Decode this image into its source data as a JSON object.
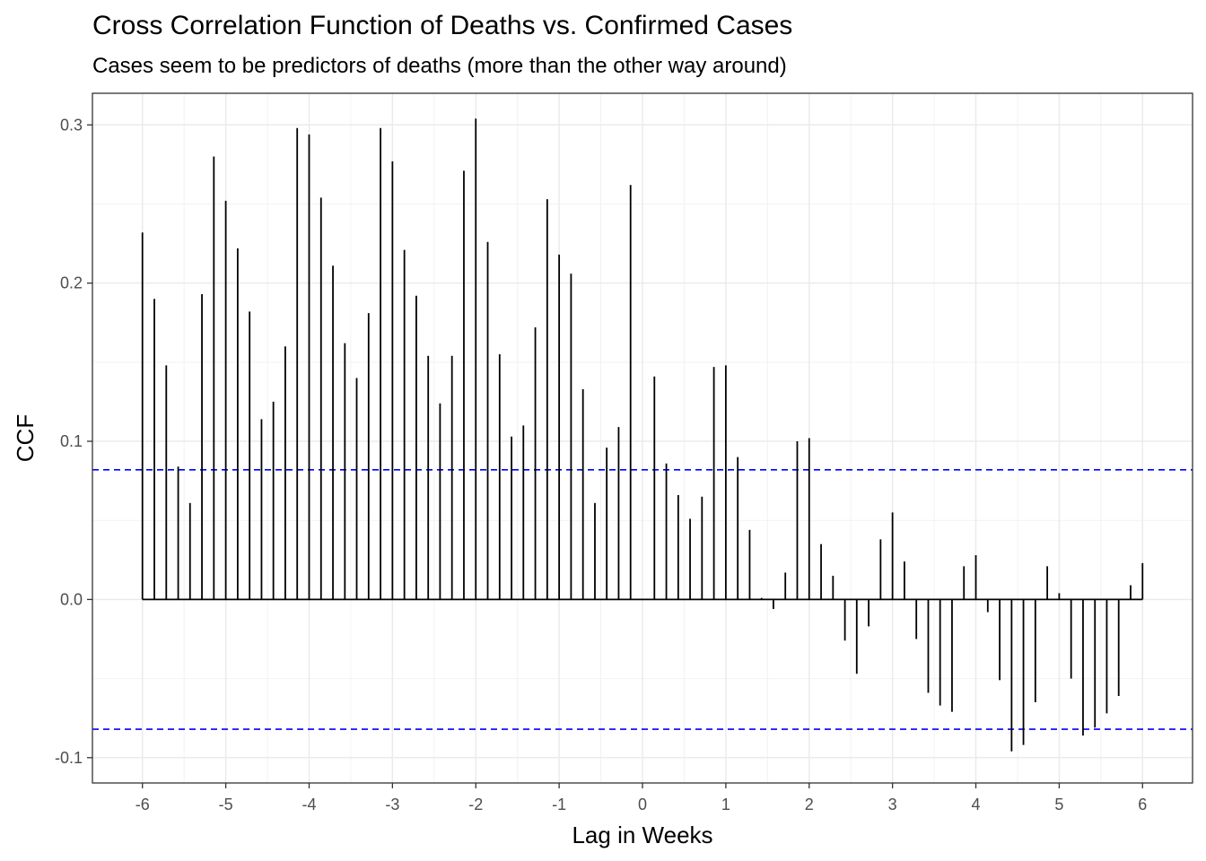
{
  "chart_data": {
    "type": "bar",
    "title": "Cross Correlation Function of Deaths vs. Confirmed Cases",
    "subtitle": "Cases seem to be predictors of deaths (more than the other way around)",
    "xlabel": "Lag in Weeks",
    "ylabel": "CCF",
    "xlim": [
      -6.6,
      6.6
    ],
    "ylim": [
      -0.116,
      0.32
    ],
    "x_ticks": [
      "-6",
      "-5",
      "-4",
      "-3",
      "-2",
      "-1",
      "0",
      "1",
      "2",
      "3",
      "4",
      "5",
      "6"
    ],
    "y_ticks": [
      "-0.1",
      "0.0",
      "0.1",
      "0.2",
      "0.3"
    ],
    "confidence_bound": 0.082,
    "grid": true,
    "x": [
      -6,
      -5.857,
      -5.714,
      -5.571,
      -5.429,
      -5.286,
      -5.143,
      -5,
      -4.857,
      -4.714,
      -4.571,
      -4.429,
      -4.286,
      -4.143,
      -4,
      -3.857,
      -3.714,
      -3.571,
      -3.429,
      -3.286,
      -3.143,
      -3,
      -2.857,
      -2.714,
      -2.571,
      -2.429,
      -2.286,
      -2.143,
      -2,
      -1.857,
      -1.714,
      -1.571,
      -1.429,
      -1.286,
      -1.143,
      -1,
      -0.857,
      -0.714,
      -0.571,
      -0.429,
      -0.286,
      -0.143,
      0,
      0.143,
      0.286,
      0.429,
      0.571,
      0.714,
      0.857,
      1,
      1.143,
      1.286,
      1.429,
      1.571,
      1.714,
      1.857,
      2,
      2.143,
      2.286,
      2.429,
      2.571,
      2.714,
      2.857,
      3,
      3.143,
      3.286,
      3.429,
      3.571,
      3.714,
      3.857,
      4,
      4.143,
      4.286,
      4.429,
      4.571,
      4.714,
      4.857,
      5,
      5.143,
      5.286,
      5.429,
      5.571,
      5.714,
      5.857,
      6
    ],
    "values": [
      0.232,
      0.19,
      0.148,
      0.084,
      0.061,
      0.193,
      0.28,
      0.252,
      0.222,
      0.182,
      0.114,
      0.125,
      0.16,
      0.298,
      0.294,
      0.254,
      0.211,
      0.162,
      0.14,
      0.181,
      0.298,
      0.277,
      0.221,
      0.192,
      0.154,
      0.124,
      0.154,
      0.271,
      0.304,
      0.226,
      0.155,
      0.103,
      0.11,
      0.172,
      0.253,
      0.218,
      0.206,
      0.133,
      0.061,
      0.096,
      0.109,
      0.262,
      0,
      0.141,
      0.086,
      0.066,
      0.051,
      0.065,
      0.147,
      0.148,
      0.09,
      0.044,
      0.001,
      -0.006,
      0.017,
      0.1,
      0.102,
      0.035,
      0.015,
      -0.026,
      -0.047,
      -0.017,
      0.038,
      0.055,
      0.024,
      -0.025,
      -0.059,
      -0.067,
      -0.071,
      0.021,
      0.028,
      -0.008,
      -0.051,
      -0.096,
      -0.092,
      -0.065,
      0.021,
      0.004,
      -0.05,
      -0.086,
      -0.081,
      -0.072,
      -0.061,
      0.009,
      0.023
    ]
  }
}
